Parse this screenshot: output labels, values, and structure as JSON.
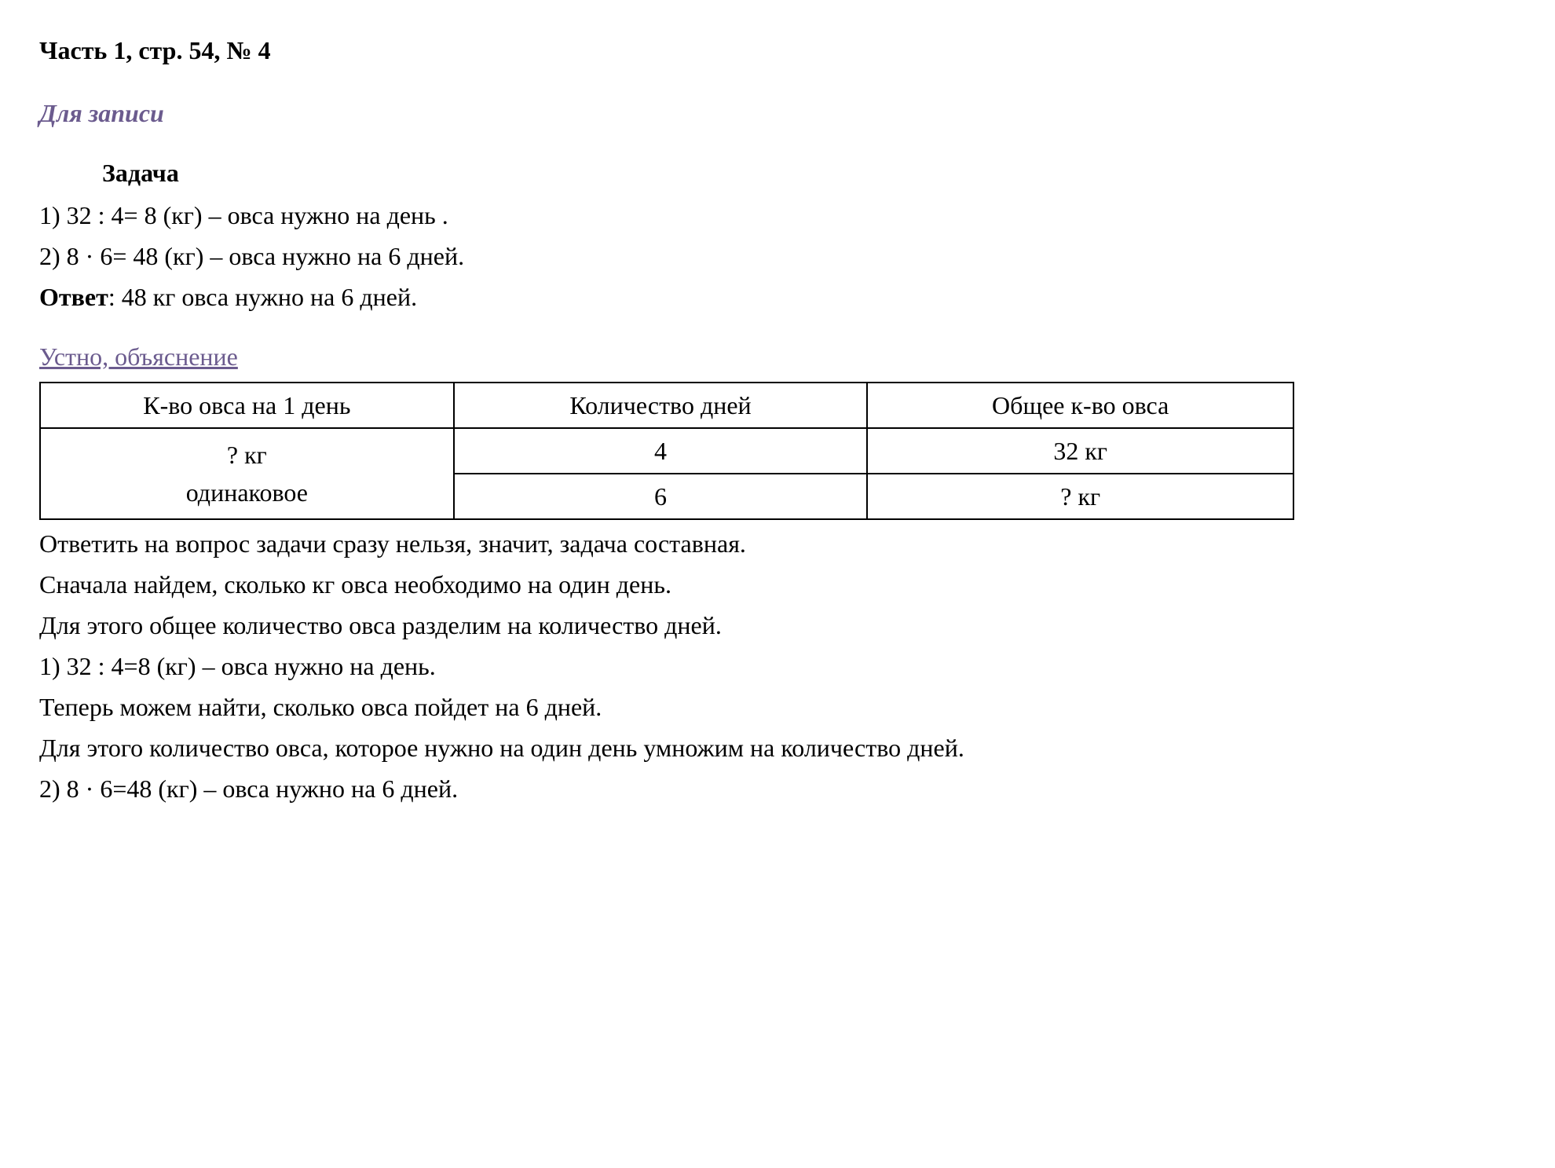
{
  "title": "Часть 1, стр. 54, № 4",
  "subtitle": "Для записи",
  "task_label": "Задача",
  "solution": {
    "line1": "1) 32 : 4= 8 (кг) – овса нужно на день .",
    "line2": "2) 8 · 6= 48 (кг) – овса нужно на 6 дней."
  },
  "answer": {
    "label": "Ответ",
    "text": ": 48 кг овса нужно на 6 дней."
  },
  "explanation_header": "Устно, объяснение",
  "table": {
    "headers": [
      "К-во овса на 1 день",
      "Количество дней",
      "Общее к-во овса"
    ],
    "row1": [
      "? кг",
      "4",
      "32 кг"
    ],
    "row2": [
      "одинаковое",
      "6",
      "? кг"
    ]
  },
  "explanation": {
    "line1": "Ответить на вопрос задачи сразу нельзя, значит, задача составная.",
    "line2": "Сначала найдем, сколько кг овса необходимо на один день.",
    "line3": "Для этого общее количество овса разделим на количество дней.",
    "line4": "1) 32 : 4=8 (кг) – овса нужно на день.",
    "line5": "Теперь можем найти, сколько овса пойдет на 6 дней.",
    "line6": "Для этого количество овса, которое нужно на один день умножим на количество дней.",
    "line7": "2) 8 · 6=48 (кг) – овса нужно на 6 дней."
  },
  "colors": {
    "background": "#ffffff",
    "text": "#000000",
    "accent": "#6b5b8e",
    "border": "#000000"
  },
  "typography": {
    "font_family": "Times New Roman",
    "base_fontsize": 32
  }
}
